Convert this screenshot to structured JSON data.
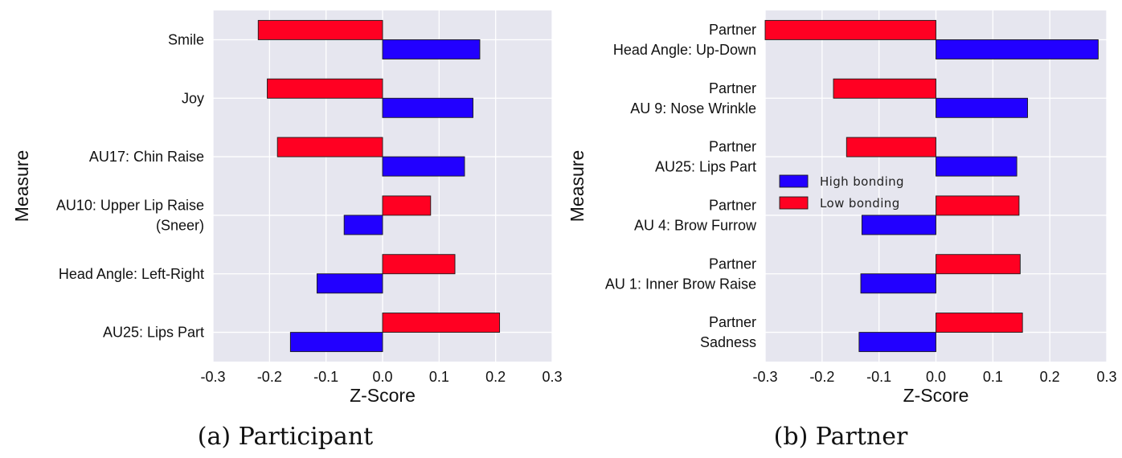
{
  "colors": {
    "high": "#2200ff",
    "low": "#ff0022",
    "panel_bg": "#e6e6ef",
    "grid": "#ffffff"
  },
  "chart_data": [
    {
      "type": "bar",
      "orientation": "horizontal",
      "caption": "(a) Participant",
      "categories": [
        [
          "Smile"
        ],
        [
          "Joy"
        ],
        [
          "AU17: Chin Raise"
        ],
        [
          "AU10: Upper Lip Raise",
          "(Sneer)"
        ],
        [
          "Head Angle: Left-Right"
        ],
        [
          "AU25: Lips Part"
        ]
      ],
      "series": [
        {
          "key": "high",
          "values": [
            0.172,
            0.16,
            0.145,
            -0.068,
            -0.116,
            -0.163
          ]
        },
        {
          "key": "low",
          "values": [
            -0.22,
            -0.204,
            -0.186,
            0.085,
            0.128,
            0.207
          ]
        }
      ],
      "xlabel": "Z-Score",
      "ylabel": "Measure",
      "xlim": [
        -0.3,
        0.3
      ],
      "xticks": [
        "-0.3",
        "-0.2",
        "-0.1",
        "0.0",
        "0.1",
        "0.2",
        "0.3"
      ],
      "grid": true,
      "legend": null
    },
    {
      "type": "bar",
      "orientation": "horizontal",
      "caption": "(b) Partner",
      "categories": [
        [
          "Partner",
          "Head Angle: Up-Down"
        ],
        [
          "Partner",
          "AU 9: Nose Wrinkle"
        ],
        [
          "Partner",
          "AU25: Lips Part"
        ],
        [
          "Partner",
          "AU 4: Brow Furrow"
        ],
        [
          "Partner",
          "AU 1: Inner Brow Raise"
        ],
        [
          "Partner",
          "Sadness"
        ]
      ],
      "series": [
        {
          "key": "high",
          "name": "High bonding",
          "values": [
            0.285,
            0.161,
            0.142,
            -0.13,
            -0.132,
            -0.135
          ]
        },
        {
          "key": "low",
          "name": "Low bonding",
          "values": [
            -0.3,
            -0.18,
            -0.157,
            0.146,
            0.148,
            0.152
          ]
        }
      ],
      "xlabel": "Z-Score",
      "ylabel": "Measure",
      "xlim": [
        -0.3,
        0.3
      ],
      "xticks": [
        "-0.3",
        "-0.2",
        "-0.1",
        "0.0",
        "0.1",
        "0.2",
        "0.3"
      ],
      "grid": true,
      "legend": "center-left"
    }
  ]
}
